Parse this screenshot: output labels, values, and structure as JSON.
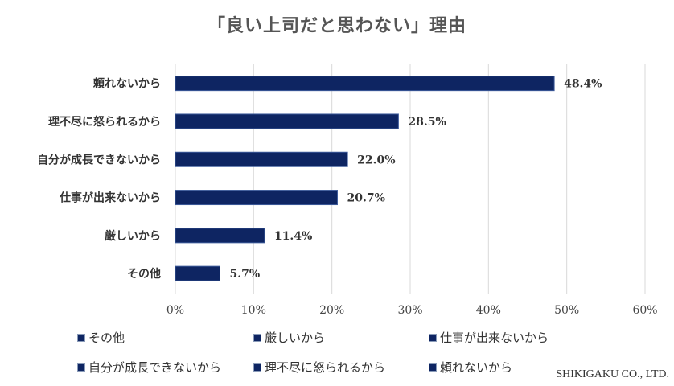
{
  "colors": {
    "bar": "#0e2562",
    "grid": "#d9d9d9"
  },
  "chart_data": {
    "type": "bar",
    "orientation": "horizontal",
    "title": "「良い上司だと思わない」理由",
    "categories": [
      "頼れないから",
      "理不尽に怒られるから",
      "自分が成長できないから",
      "仕事が出来ないから",
      "厳しいから",
      "その他"
    ],
    "values": [
      48.4,
      28.5,
      22.0,
      20.7,
      11.4,
      5.7
    ],
    "value_labels": [
      "48.4%",
      "28.5%",
      "22.0%",
      "20.7%",
      "11.4%",
      "5.7%"
    ],
    "xlim": [
      0,
      60
    ],
    "ticks": [
      0,
      10,
      20,
      30,
      40,
      50,
      60
    ],
    "tick_labels": [
      "0%",
      "10%",
      "20%",
      "30%",
      "40%",
      "50%",
      "60%"
    ],
    "grid": true,
    "legend_position": "bottom",
    "legend": [
      "その他",
      "厳しいから",
      "仕事が出来ないから",
      "自分が成長できないから",
      "理不尽に怒られるから",
      "頼れないから"
    ]
  },
  "footer": {
    "company": "SHIKIGAKU CO., LTD."
  }
}
